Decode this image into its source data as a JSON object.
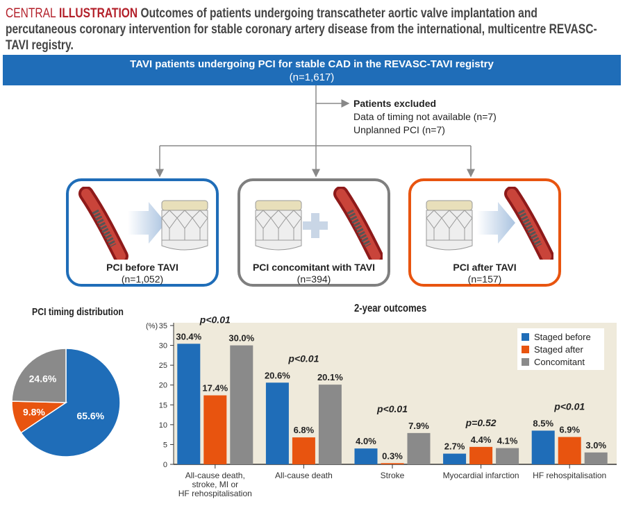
{
  "title": {
    "label1": "CENTRAL",
    "label2": "ILLUSTRATION",
    "text": "Outcomes of patients undergoing transcatheter aortic valve implantation and percutaneous coronary intervention for stable coronary artery disease from the international, multicentre REVASC-TAVI registry."
  },
  "flow": {
    "top": {
      "label": "TAVI patients undergoing PCI for stable CAD in the REVASC-TAVI registry",
      "n": "(n=1,617)"
    },
    "excluded": {
      "title": "Patients excluded",
      "items": [
        "Data of timing not available (n=7)",
        "Unplanned PCI (n=7)"
      ]
    },
    "groups": [
      {
        "label": "PCI before TAVI",
        "n": "(n=1,052)",
        "color": "#1f6db8"
      },
      {
        "label": "PCI concomitant with TAVI",
        "n": "(n=394)",
        "color": "#7f7f7f"
      },
      {
        "label": "PCI after TAVI",
        "n": "(n=157)",
        "color": "#e8540f"
      }
    ]
  },
  "chart_data": [
    {
      "type": "pie",
      "title": "PCI timing distribution",
      "slices": [
        {
          "name": "PCI before TAVI",
          "value": 65.6,
          "label": "65.6%",
          "color": "#1f6db8"
        },
        {
          "name": "PCI after TAVI",
          "value": 9.8,
          "label": "9.8%",
          "color": "#e8540f"
        },
        {
          "name": "PCI concomitant with TAVI",
          "value": 24.6,
          "label": "24.6%",
          "color": "#8a8a8a"
        }
      ]
    },
    {
      "type": "bar",
      "title": "2-year outcomes",
      "ylabel": "(%)",
      "ylim": [
        0,
        35
      ],
      "yticks": [
        0,
        5,
        10,
        15,
        20,
        25,
        30,
        35
      ],
      "categories": [
        "All-cause death, stroke, MI or HF rehospitalisation",
        "All-cause death",
        "Stroke",
        "Myocardial infarction",
        "HF rehospitalisation"
      ],
      "category_lines": [
        [
          "All-cause death,",
          "stroke, MI or",
          "HF rehospitalisation"
        ],
        [
          "All-cause death"
        ],
        [
          "Stroke"
        ],
        [
          "Myocardial infarction"
        ],
        [
          "HF rehospitalisation"
        ]
      ],
      "p_values": [
        "p<0.01",
        "p<0.01",
        "p<0.01",
        "p=0.52",
        "p<0.01"
      ],
      "series": [
        {
          "name": "Staged before",
          "color": "#1f6db8",
          "values": [
            30.4,
            20.6,
            4.0,
            2.7,
            8.5
          ]
        },
        {
          "name": "Staged after",
          "color": "#e8540f",
          "values": [
            17.4,
            6.8,
            0.3,
            4.4,
            6.9
          ]
        },
        {
          "name": "Concomitant",
          "color": "#8a8a8a",
          "values": [
            30.0,
            20.1,
            7.9,
            4.1,
            3.0
          ]
        }
      ],
      "legend": "top-right"
    }
  ]
}
